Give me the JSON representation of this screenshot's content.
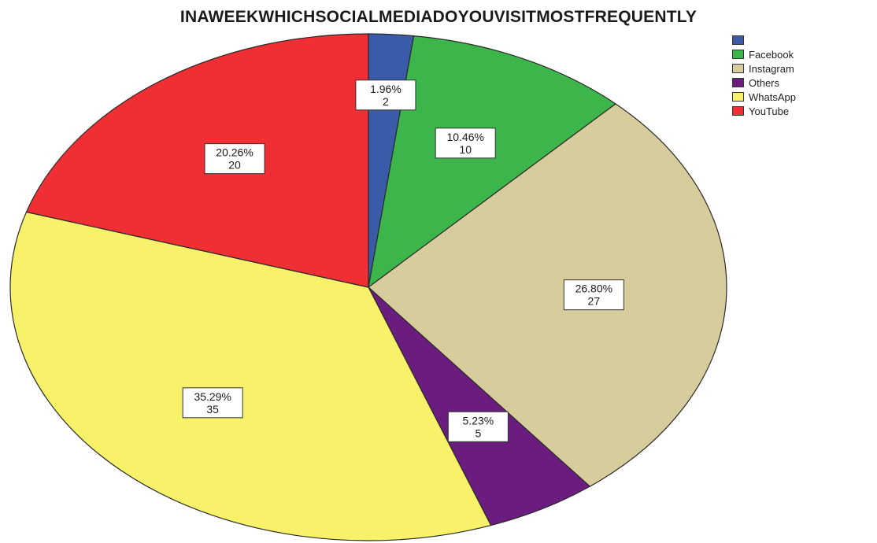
{
  "chart_data": {
    "type": "pie",
    "title": "INAWEEKWHICHSOCIALMEDIADOYOUVISITMOSTFREQUENTLY",
    "legend_position": "top-right",
    "slices": [
      {
        "name": "",
        "percent_label": "1.96%",
        "count_label": "2",
        "value": 2,
        "color": "#3a5ba8"
      },
      {
        "name": "Facebook",
        "percent_label": "10.46%",
        "count_label": "10",
        "value": 10,
        "color": "#3cb54a"
      },
      {
        "name": "Instagram",
        "percent_label": "26.80%",
        "count_label": "27",
        "value": 27,
        "color": "#d6cc9c"
      },
      {
        "name": "Others",
        "percent_label": "5.23%",
        "count_label": "5",
        "value": 5,
        "color": "#6a1d7e"
      },
      {
        "name": "WhatsApp",
        "percent_label": "35.29%",
        "count_label": "35",
        "value": 35,
        "color": "#f8f26a"
      },
      {
        "name": "YouTube",
        "percent_label": "20.26%",
        "count_label": "20",
        "value": 20,
        "color": "#ef2f33"
      }
    ]
  }
}
